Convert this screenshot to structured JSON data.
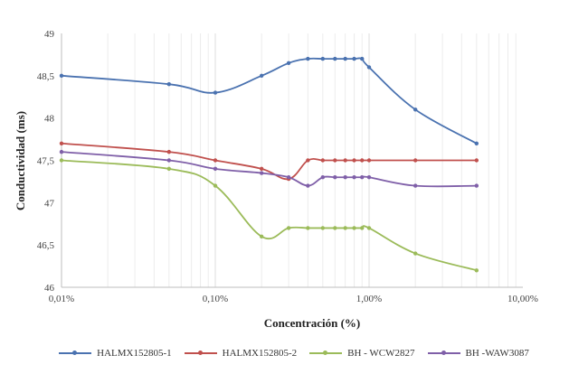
{
  "chart_data": {
    "type": "line",
    "title": "",
    "xlabel": "Concentración (%)",
    "ylabel": "Conductividad (ms)",
    "x_scale": "log",
    "xlim": [
      0.01,
      10
    ],
    "ylim": [
      46,
      49
    ],
    "x_ticks": [
      "0,01%",
      "0,10%",
      "1,00%",
      "10,00%"
    ],
    "y_ticks": [
      "46",
      "46,5",
      "47",
      "47,5",
      "48",
      "48,5",
      "49"
    ],
    "grid": {
      "vertical_minor": true,
      "horizontal": false
    },
    "legend_position": "bottom",
    "x": [
      0.01,
      0.05,
      0.1,
      0.2,
      0.3,
      0.4,
      0.5,
      0.6,
      0.7,
      0.8,
      0.9,
      1.0,
      2.0,
      5.0
    ],
    "series": [
      {
        "name": "HALMX152805-1",
        "color": "#4a72b0",
        "values": [
          48.5,
          48.4,
          48.3,
          48.5,
          48.65,
          48.7,
          48.7,
          48.7,
          48.7,
          48.7,
          48.7,
          48.6,
          48.1,
          47.7
        ]
      },
      {
        "name": "HALMX152805-2",
        "color": "#c0504d",
        "values": [
          47.7,
          47.6,
          47.5,
          47.4,
          47.28,
          47.5,
          47.5,
          47.5,
          47.5,
          47.5,
          47.5,
          47.5,
          47.5,
          47.5
        ]
      },
      {
        "name": "BH - WCW2827",
        "color": "#9bbb59",
        "values": [
          47.5,
          47.4,
          47.2,
          46.6,
          46.7,
          46.7,
          46.7,
          46.7,
          46.7,
          46.7,
          46.7,
          46.7,
          46.4,
          46.2
        ]
      },
      {
        "name": "BH -WAW3087",
        "color": "#7f5fa8",
        "values": [
          47.6,
          47.5,
          47.4,
          47.35,
          47.3,
          47.2,
          47.3,
          47.3,
          47.3,
          47.3,
          47.3,
          47.3,
          47.2,
          47.2
        ]
      }
    ]
  },
  "axes": {
    "xlabel": "Concentración (%)",
    "ylabel": "Conductividad (ms)"
  },
  "legend": [
    {
      "label": "HALMX152805-1",
      "color": "#4a72b0"
    },
    {
      "label": "HALMX152805-2",
      "color": "#c0504d"
    },
    {
      "label": "BH - WCW2827",
      "color": "#9bbb59"
    },
    {
      "label": "BH -WAW3087",
      "color": "#7f5fa8"
    }
  ]
}
